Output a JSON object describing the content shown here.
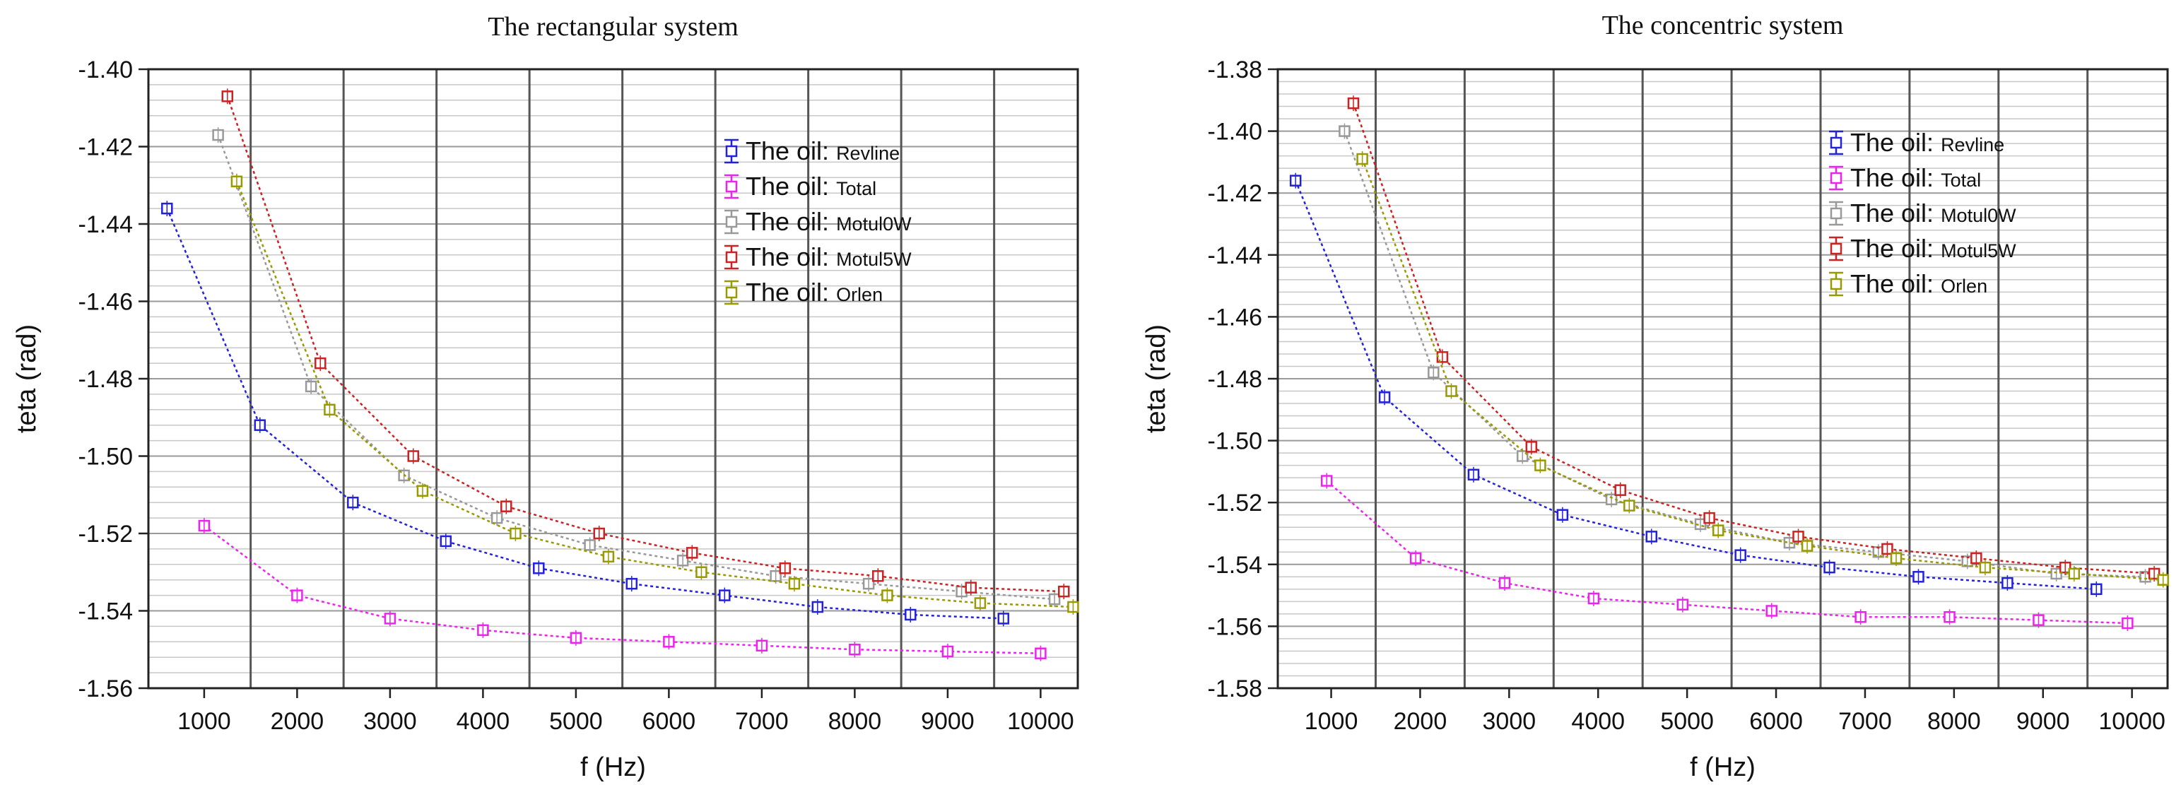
{
  "chart_data": [
    {
      "type": "line",
      "title": "The rectangular system",
      "xlabel": "f (Hz)",
      "ylabel": "teta (rad)",
      "xlim": [
        400,
        10400
      ],
      "ylim": [
        -1.56,
        -1.4
      ],
      "xticks": [
        1000,
        2000,
        3000,
        4000,
        5000,
        6000,
        7000,
        8000,
        9000,
        10000
      ],
      "yticks": [
        -1.4,
        -1.42,
        -1.44,
        -1.46,
        -1.48,
        -1.5,
        -1.52,
        -1.54,
        -1.56
      ],
      "xtick_labels": [
        "1000",
        "2000",
        "3000",
        "4000",
        "5000",
        "6000",
        "7000",
        "8000",
        "9000",
        "10000"
      ],
      "ytick_labels": [
        "-1.40",
        "-1.42",
        "-1.44",
        "-1.46",
        "-1.48",
        "-1.50",
        "-1.52",
        "-1.54",
        "-1.56"
      ],
      "grid": true,
      "legend_position": "top-right",
      "series": [
        {
          "name": "The oil:",
          "sub": "Revline",
          "color": "#2222dd",
          "x": [
            600,
            1600,
            2600,
            3600,
            4600,
            5600,
            6600,
            7600,
            8600,
            9600
          ],
          "y": [
            -1.436,
            -1.492,
            -1.512,
            -1.522,
            -1.529,
            -1.533,
            -1.536,
            -1.539,
            -1.541,
            -1.542
          ]
        },
        {
          "name": "The oil:",
          "sub": "Total",
          "color": "#ee22ee",
          "x": [
            1000,
            2000,
            3000,
            4000,
            5000,
            6000,
            7000,
            8000,
            9000,
            10000
          ],
          "y": [
            -1.518,
            -1.536,
            -1.542,
            -1.545,
            -1.547,
            -1.548,
            -1.549,
            -1.55,
            -1.5505,
            -1.551
          ]
        },
        {
          "name": "The oil:",
          "sub": "Motul0W",
          "color": "#999999",
          "x": [
            1150,
            2150,
            3150,
            4150,
            5150,
            6150,
            7150,
            8150,
            9150,
            10150
          ],
          "y": [
            -1.417,
            -1.482,
            -1.505,
            -1.516,
            -1.523,
            -1.527,
            -1.531,
            -1.533,
            -1.535,
            -1.537
          ]
        },
        {
          "name": "The oil:",
          "sub": "Motul5W",
          "color": "#cc2222",
          "x": [
            1250,
            2250,
            3250,
            4250,
            5250,
            6250,
            7250,
            8250,
            9250,
            10250
          ],
          "y": [
            -1.407,
            -1.476,
            -1.5,
            -1.513,
            -1.52,
            -1.525,
            -1.529,
            -1.531,
            -1.534,
            -1.535
          ]
        },
        {
          "name": "The oil:",
          "sub": "Orlen",
          "color": "#999900",
          "x": [
            1350,
            2350,
            3350,
            4350,
            5350,
            6350,
            7350,
            8350,
            9350,
            10350
          ],
          "y": [
            -1.429,
            -1.488,
            -1.509,
            -1.52,
            -1.526,
            -1.53,
            -1.533,
            -1.536,
            -1.538,
            -1.539
          ]
        }
      ]
    },
    {
      "type": "line",
      "title": "The concentric system",
      "xlabel": "f (Hz)",
      "ylabel": "teta (rad)",
      "xlim": [
        400,
        10400
      ],
      "ylim": [
        -1.58,
        -1.38
      ],
      "xticks": [
        1000,
        2000,
        3000,
        4000,
        5000,
        6000,
        7000,
        8000,
        9000,
        10000
      ],
      "yticks": [
        -1.38,
        -1.4,
        -1.42,
        -1.44,
        -1.46,
        -1.48,
        -1.5,
        -1.52,
        -1.54,
        -1.56,
        -1.58
      ],
      "xtick_labels": [
        "1000",
        "2000",
        "3000",
        "4000",
        "5000",
        "6000",
        "7000",
        "8000",
        "9000",
        "10000"
      ],
      "ytick_labels": [
        "-1.38",
        "-1.40",
        "-1.42",
        "-1.44",
        "-1.46",
        "-1.48",
        "-1.50",
        "-1.52",
        "-1.54",
        "-1.56",
        "-1.58"
      ],
      "grid": true,
      "legend_position": "top-right",
      "series": [
        {
          "name": "The oil:",
          "sub": "Revline",
          "color": "#2222dd",
          "x": [
            600,
            1600,
            2600,
            3600,
            4600,
            5600,
            6600,
            7600,
            8600,
            9600
          ],
          "y": [
            -1.416,
            -1.486,
            -1.511,
            -1.524,
            -1.531,
            -1.537,
            -1.541,
            -1.544,
            -1.546,
            -1.548
          ]
        },
        {
          "name": "The oil:",
          "sub": "Total",
          "color": "#ee22ee",
          "x": [
            950,
            1950,
            2950,
            3950,
            4950,
            5950,
            6950,
            7950,
            8950,
            9950
          ],
          "y": [
            -1.513,
            -1.538,
            -1.546,
            -1.551,
            -1.553,
            -1.555,
            -1.557,
            -1.557,
            -1.558,
            -1.559
          ]
        },
        {
          "name": "The oil:",
          "sub": "Motul0W",
          "color": "#999999",
          "x": [
            1150,
            2150,
            3150,
            4150,
            5150,
            6150,
            7150,
            8150,
            9150,
            10150
          ],
          "y": [
            -1.4,
            -1.478,
            -1.505,
            -1.519,
            -1.527,
            -1.533,
            -1.536,
            -1.539,
            -1.543,
            -1.544
          ]
        },
        {
          "name": "The oil:",
          "sub": "Motul5W",
          "color": "#cc2222",
          "x": [
            1250,
            2250,
            3250,
            4250,
            5250,
            6250,
            7250,
            8250,
            9250,
            10250
          ],
          "y": [
            -1.391,
            -1.473,
            -1.502,
            -1.516,
            -1.525,
            -1.531,
            -1.535,
            -1.538,
            -1.541,
            -1.543
          ]
        },
        {
          "name": "The oil:",
          "sub": "Orlen",
          "color": "#999900",
          "x": [
            1350,
            2350,
            3350,
            4350,
            5350,
            6350,
            7350,
            8350,
            9350,
            10350
          ],
          "y": [
            -1.409,
            -1.484,
            -1.508,
            -1.521,
            -1.529,
            -1.534,
            -1.538,
            -1.541,
            -1.543,
            -1.545
          ]
        }
      ]
    }
  ]
}
